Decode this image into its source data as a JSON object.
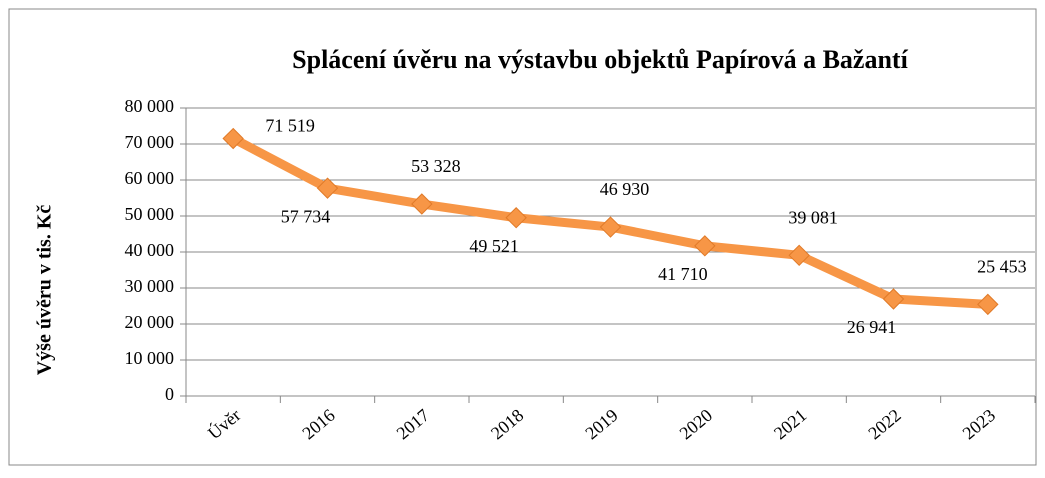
{
  "chart_data": {
    "type": "line",
    "title": "Splácení úvěru na výstavbu objektů Papírová a Bažantí",
    "y_label": "Výše úvěru v tis. Kč",
    "categories": [
      "Úvěr",
      "2016",
      "2017",
      "2018",
      "2019",
      "2020",
      "2021",
      "2022",
      "2023"
    ],
    "values": [
      71519,
      57734,
      53328,
      49521,
      46930,
      41710,
      39081,
      26941,
      25453
    ],
    "value_labels": [
      "71 519",
      "57 734",
      "53 328",
      "49 521",
      "46 930",
      "41 710",
      "39 081",
      "26 941",
      "25 453"
    ],
    "color": "#f79646",
    "ylim": [
      0,
      80000
    ],
    "yticks": [
      0,
      {
        "value": 10000,
        "label": "10 000"
      },
      {
        "value": 20000,
        "label": "20 000"
      },
      {
        "value": 30000,
        "label": "30 000"
      },
      {
        "value": 40000,
        "label": "40 000"
      },
      {
        "value": 50000,
        "label": "50 000"
      },
      {
        "value": 60000,
        "label": "60 000"
      },
      {
        "value": 70000,
        "label": "70 000"
      },
      {
        "value": 80000,
        "label": "80 000"
      }
    ],
    "grid": true
  }
}
